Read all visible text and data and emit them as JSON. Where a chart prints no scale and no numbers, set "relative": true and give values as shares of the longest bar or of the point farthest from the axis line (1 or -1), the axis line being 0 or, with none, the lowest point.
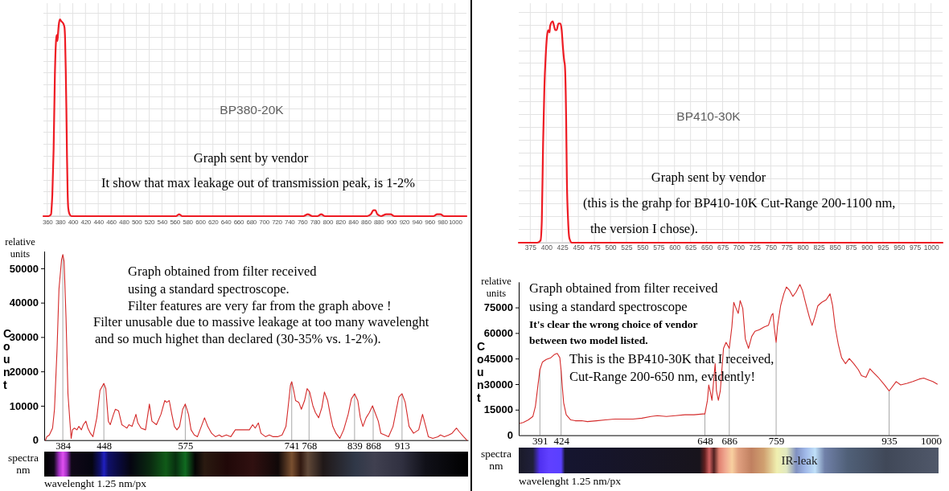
{
  "chart_data": [
    {
      "type": "line",
      "relative": true,
      "color": "#ee1c24",
      "grid": true,
      "xlim": [
        354,
        1018
      ],
      "xticks": [
        360,
        380,
        400,
        420,
        440,
        460,
        480,
        500,
        520,
        540,
        560,
        580,
        600,
        620,
        640,
        660,
        680,
        700,
        720,
        740,
        760,
        780,
        800,
        820,
        840,
        860,
        880,
        900,
        920,
        940,
        960,
        980,
        1000
      ],
      "x": [
        354,
        362,
        366,
        367,
        368,
        370,
        372,
        374,
        375,
        376,
        377,
        378,
        380,
        382,
        385,
        387,
        388,
        389,
        390,
        391,
        392,
        393,
        395,
        398,
        500,
        562,
        567,
        572,
        762,
        769,
        776,
        784,
        790,
        796,
        862,
        868,
        872,
        875,
        878,
        884,
        892,
        899,
        905,
        966,
        972,
        977,
        983,
        1018
      ],
      "values": [
        0,
        0,
        0.01,
        0.05,
        0.11,
        0.34,
        0.72,
        0.9,
        0.92,
        0.89,
        0.93,
        0.97,
        1,
        0.99,
        0.98,
        0.96,
        0.9,
        0.75,
        0.55,
        0.3,
        0.12,
        0.04,
        0.01,
        0,
        0,
        0,
        0.01,
        0,
        0,
        0.01,
        0,
        0,
        0.01,
        0,
        0,
        0.01,
        0.03,
        0.03,
        0.01,
        0,
        0.01,
        0.01,
        0,
        0,
        0.01,
        0.01,
        0,
        0
      ],
      "annotations": [
        "BP380-20K",
        "Graph sent by vendor",
        "It show that max leakage out of transmission peak, is 1-2%"
      ]
    },
    {
      "type": "line",
      "relative": true,
      "color": "#ee1c24",
      "grid": true,
      "xlim": [
        357,
        1018
      ],
      "xticks": [
        375,
        400,
        425,
        450,
        475,
        500,
        525,
        550,
        575,
        600,
        625,
        650,
        675,
        700,
        725,
        750,
        775,
        800,
        825,
        850,
        875,
        900,
        925,
        950,
        975,
        1000
      ],
      "x": [
        357,
        380,
        386,
        391,
        393,
        395,
        397,
        399,
        401,
        403,
        405,
        406,
        410,
        412,
        414,
        416,
        419,
        422,
        424,
        426,
        428,
        429,
        431,
        432,
        434,
        436,
        440,
        450,
        1018
      ],
      "values": [
        0,
        0,
        0,
        0.01,
        0.1,
        0.45,
        0.7,
        0.84,
        0.93,
        0.96,
        0.95,
        0.98,
        1,
        0.98,
        0.96,
        0.96,
        0.99,
        0.99,
        0.96,
        0.88,
        0.82,
        0.8,
        0.55,
        0.3,
        0.1,
        0.02,
        0,
        0,
        0
      ],
      "annotations": [
        "BP410-30K",
        "Graph sent by vendor",
        "(this is the grahp for BP410-10K Cut-Range 200-1100 nm,",
        "the version I chose)."
      ]
    },
    {
      "type": "line",
      "color": "#d42a2a",
      "xlim": [
        355,
        1016
      ],
      "xticks": [
        384,
        448,
        575,
        741,
        768,
        839,
        868,
        913
      ],
      "ylim": [
        0,
        55000
      ],
      "yticks": [
        0,
        10000,
        20000,
        30000,
        40000,
        50000
      ],
      "ylabel": "Count",
      "xlabel": "wavelenght 1.25 nm/px",
      "ref_lines": [
        {
          "axis": "x",
          "value": 384,
          "color": "#a8a8a8"
        },
        {
          "axis": "x",
          "value": 448,
          "color": "#a8a8a8"
        },
        {
          "axis": "x",
          "value": 575,
          "color": "#a8a8a8"
        },
        {
          "axis": "x",
          "value": 741,
          "color": "#a8a8a8"
        },
        {
          "axis": "x",
          "value": 768,
          "color": "#a8a8a8"
        },
        {
          "axis": "x",
          "value": 839,
          "color": "#a8a8a8"
        },
        {
          "axis": "x",
          "value": 868,
          "color": "#a8a8a8"
        },
        {
          "axis": "x",
          "value": 913,
          "color": "#a8a8a8"
        }
      ],
      "x": [
        357,
        359,
        363,
        368,
        371,
        375,
        378,
        382,
        384,
        386,
        389,
        392,
        395,
        397,
        399,
        402,
        406,
        409,
        413,
        416,
        420,
        423,
        427,
        431,
        437,
        442,
        448,
        451,
        455,
        458,
        463,
        466,
        471,
        476,
        480,
        484,
        487,
        492,
        498,
        501,
        506,
        513,
        519,
        523,
        530,
        537,
        543,
        546,
        550,
        554,
        558,
        562,
        566,
        571,
        575,
        580,
        584,
        589,
        594,
        600,
        605,
        610,
        616,
        622,
        628,
        632,
        639,
        646,
        653,
        660,
        668,
        675,
        680,
        684,
        689,
        693,
        700,
        706,
        712,
        719,
        726,
        732,
        735,
        739,
        741,
        744,
        747,
        752,
        756,
        761,
        765,
        769,
        774,
        778,
        783,
        788,
        792,
        797,
        801,
        805,
        810,
        816,
        822,
        829,
        834,
        839,
        844,
        848,
        852,
        857,
        862,
        867,
        871,
        876,
        880,
        886,
        892,
        899,
        908,
        913,
        918,
        924,
        931,
        939,
        945,
        950,
        954,
        961,
        969,
        973,
        979,
        986,
        991,
        998,
        1002,
        1009,
        1014
      ],
      "values": [
        0,
        1000,
        1500,
        3500,
        9000,
        26500,
        44000,
        52500,
        54000,
        52000,
        35500,
        13500,
        5500,
        500,
        3000,
        3500,
        3000,
        4000,
        3000,
        4500,
        5500,
        3500,
        2000,
        1000,
        6500,
        14500,
        16500,
        15000,
        5500,
        4500,
        7500,
        9000,
        8500,
        4500,
        4000,
        3500,
        4500,
        4000,
        7500,
        5000,
        3500,
        3000,
        10500,
        5500,
        4500,
        7500,
        11500,
        11000,
        11500,
        7500,
        4000,
        3000,
        4000,
        9000,
        10500,
        7500,
        3000,
        1500,
        1000,
        4000,
        6500,
        4000,
        2000,
        1000,
        1500,
        1000,
        1500,
        1000,
        3000,
        3000,
        3000,
        3000,
        4500,
        3500,
        5000,
        2000,
        1000,
        1500,
        1000,
        1000,
        1500,
        4000,
        9000,
        16000,
        17000,
        14500,
        11500,
        11000,
        9000,
        11500,
        15000,
        14000,
        10000,
        8000,
        6500,
        9500,
        14000,
        11500,
        7500,
        4000,
        2000,
        500,
        3000,
        7500,
        12000,
        13500,
        11500,
        6500,
        4000,
        6500,
        8000,
        10000,
        8000,
        5500,
        2000,
        1500,
        1000,
        4000,
        12500,
        13500,
        11000,
        4000,
        2000,
        3000,
        7500,
        4000,
        1000,
        500,
        1000,
        1500,
        1000,
        1500,
        2000,
        3500,
        2500,
        1000,
        0
      ],
      "annotations": [
        "relative units",
        "Graph obtained from filter received",
        "using a standard spectroscope.",
        "Filter features are very far from the graph above !",
        "Filter unusable due to massive leakage at too many wavelenght",
        "and so much highet than declared (30-35% vs. 1-2%).",
        "spectra nm"
      ]
    },
    {
      "type": "line",
      "color": "#d42a2a",
      "xlim": [
        358,
        1012
      ],
      "xticks": [
        391,
        424,
        648,
        686,
        759,
        935,
        1000
      ],
      "ylim": [
        0,
        90000
      ],
      "yticks": [
        0,
        15000,
        30000,
        45000,
        60000,
        75000
      ],
      "ylabel": "Count",
      "xlabel": "wavelenght 1.25 nm/px",
      "ref_lines": [
        {
          "axis": "x",
          "value": 391,
          "color": "#a8a8a8"
        },
        {
          "axis": "x",
          "value": 424,
          "color": "#a8a8a8"
        },
        {
          "axis": "x",
          "value": 648,
          "color": "#a8a8a8"
        },
        {
          "axis": "x",
          "value": 686,
          "color": "#a8a8a8"
        },
        {
          "axis": "x",
          "value": 759,
          "color": "#a8a8a8"
        },
        {
          "axis": "x",
          "value": 935,
          "color": "#a8a8a8"
        }
      ],
      "x": [
        360,
        365,
        373,
        380,
        384,
        388,
        391,
        395,
        401,
        408,
        414,
        418,
        422,
        424,
        426,
        428,
        432,
        439,
        446,
        456,
        465,
        479,
        493,
        508,
        522,
        536,
        550,
        564,
        574,
        588,
        602,
        617,
        631,
        645,
        648,
        652,
        654,
        657,
        659,
        664,
        666,
        669,
        672,
        677,
        681,
        686,
        690,
        693,
        696,
        700,
        703,
        707,
        711,
        716,
        721,
        726,
        733,
        740,
        747,
        752,
        754,
        756,
        759,
        761,
        766,
        771,
        775,
        780,
        785,
        790,
        796,
        800,
        806,
        811,
        815,
        819,
        824,
        830,
        837,
        843,
        847,
        851,
        856,
        861,
        867,
        873,
        880,
        887,
        892,
        899,
        905,
        910,
        918,
        928,
        935,
        946,
        953,
        963,
        972,
        982,
        989,
        996,
        1003,
        1010
      ],
      "values": [
        7000,
        7500,
        9000,
        11000,
        17000,
        29500,
        38500,
        43000,
        44500,
        45500,
        47500,
        48000,
        45500,
        38000,
        28000,
        19000,
        12000,
        9000,
        8500,
        8500,
        8000,
        8500,
        9000,
        9500,
        9500,
        9500,
        10000,
        11000,
        11500,
        11000,
        11500,
        12000,
        12000,
        12500,
        12500,
        20500,
        29500,
        24500,
        20500,
        42000,
        26000,
        20500,
        26000,
        51000,
        54500,
        51000,
        63500,
        78000,
        75000,
        71500,
        79000,
        74500,
        56500,
        51000,
        58000,
        61000,
        62000,
        63500,
        64500,
        70500,
        71500,
        63500,
        54500,
        63500,
        76000,
        83000,
        87000,
        85000,
        81500,
        84000,
        88500,
        85000,
        76000,
        69000,
        64500,
        69000,
        76000,
        78000,
        79500,
        83000,
        76000,
        63500,
        53000,
        45500,
        42000,
        45000,
        42000,
        38500,
        35000,
        34000,
        39000,
        37000,
        34000,
        29500,
        26000,
        31500,
        29500,
        30500,
        31500,
        33000,
        33500,
        32500,
        31500,
        30000
      ],
      "annotations": [
        "relative units",
        "Graph obtained from filter received",
        "using a standard spectroscope",
        "It's clear the wrong choice of vendor",
        "between two model listed.",
        "This is the BP410-30K that I received,",
        "Cut-Range 200-650 nm, evidently!",
        "spectra nm",
        "IR-leak"
      ]
    }
  ]
}
